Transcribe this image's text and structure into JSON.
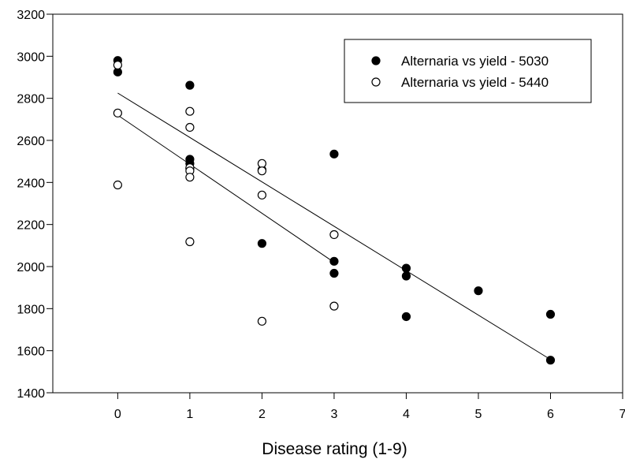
{
  "chart_data": {
    "type": "scatter",
    "title": "",
    "xlabel": "Disease rating (1-9)",
    "ylabel": "",
    "xlim": [
      -0.9,
      7
    ],
    "ylim": [
      1400,
      3200
    ],
    "xticks": [
      0,
      1,
      2,
      3,
      4,
      5,
      6,
      7
    ],
    "yticks": [
      1400,
      1600,
      1800,
      2000,
      2200,
      2400,
      2600,
      2800,
      3000,
      3200
    ],
    "grid": false,
    "legend_position": "top-right",
    "series": [
      {
        "name": "Alternaria vs yield - 5030",
        "marker": "filled-circle",
        "color": "#000000",
        "points": [
          [
            0,
            2980
          ],
          [
            0,
            2925
          ],
          [
            1,
            2862
          ],
          [
            1,
            2510
          ],
          [
            1,
            2490
          ],
          [
            1,
            2465
          ],
          [
            2,
            2460
          ],
          [
            2,
            2110
          ],
          [
            3,
            2535
          ],
          [
            3,
            2025
          ],
          [
            3,
            1968
          ],
          [
            4,
            1992
          ],
          [
            4,
            1955
          ],
          [
            4,
            1762
          ],
          [
            5,
            1885
          ],
          [
            6,
            1773
          ],
          [
            6,
            1555
          ]
        ],
        "trendline": {
          "x": [
            0,
            6
          ],
          "y": [
            2825,
            1558
          ]
        }
      },
      {
        "name": "Alternaria vs yield - 5440",
        "marker": "open-circle",
        "color": "#000000",
        "points": [
          [
            0,
            2958
          ],
          [
            0,
            2730
          ],
          [
            0,
            2388
          ],
          [
            1,
            2738
          ],
          [
            1,
            2662
          ],
          [
            1,
            2470
          ],
          [
            1,
            2455
          ],
          [
            1,
            2425
          ],
          [
            1,
            2118
          ],
          [
            2,
            2490
          ],
          [
            2,
            2455
          ],
          [
            2,
            2340
          ],
          [
            2,
            1740
          ],
          [
            3,
            2152
          ],
          [
            3,
            1812
          ]
        ],
        "trendline": {
          "x": [
            0,
            3
          ],
          "y": [
            2720,
            2020
          ]
        }
      }
    ]
  }
}
